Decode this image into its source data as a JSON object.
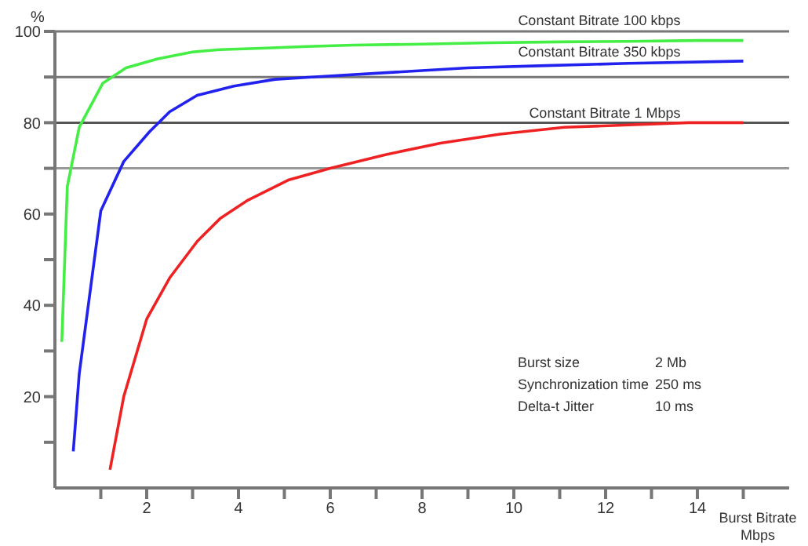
{
  "chart_data": {
    "type": "line",
    "xlabel": "Burst Bitrate Mbps",
    "ylabel": "%",
    "xlim": [
      0,
      16
    ],
    "xticks": [
      {
        "value": 1,
        "label": null
      },
      2,
      {
        "value": 3,
        "label": null
      },
      4,
      {
        "value": 5,
        "label": null
      },
      6,
      {
        "value": 7,
        "label": null
      },
      8,
      {
        "value": 9,
        "label": null
      },
      10,
      {
        "value": 11,
        "label": null
      },
      12,
      {
        "value": 13,
        "label": null
      },
      14,
      {
        "value": 15,
        "label": null
      }
    ],
    "ylim": [
      0,
      100
    ],
    "yticks": [
      {
        "value": 10,
        "label": null
      },
      20,
      {
        "value": 30,
        "label": null
      },
      40,
      {
        "value": 50,
        "label": null
      },
      60,
      {
        "value": 70,
        "label": null
      },
      80,
      {
        "value": 90,
        "label": null
      },
      100
    ],
    "grid": false,
    "legend": false,
    "marker": "none",
    "line_style": "solid",
    "ref_lines": [
      {
        "axis": "y",
        "value": 70,
        "color": "#999999"
      },
      {
        "axis": "y",
        "value": 80,
        "color": "#555555"
      },
      {
        "axis": "y",
        "value": 90,
        "color": "#777777"
      },
      {
        "axis": "y",
        "value": 100,
        "color": "#777777"
      }
    ],
    "series": [
      {
        "name": "Constant Bitrate 100 kbps",
        "color": "#44ee44",
        "x": [
          0.15,
          0.27,
          0.53,
          1.04,
          1.55,
          2.24,
          3.0,
          3.6,
          4.5,
          5.5,
          6.5,
          8,
          9.5,
          11,
          12.5,
          14,
          15
        ],
        "values": [
          32,
          66,
          79,
          88.6,
          92,
          94,
          95.5,
          96,
          96.3,
          96.7,
          97,
          97.2,
          97.5,
          97.7,
          97.8,
          98,
          98
        ]
      },
      {
        "name": "Constant Bitrate 350 kbps",
        "color": "#2222ee",
        "x": [
          0.4,
          0.53,
          1.0,
          1.5,
          2.06,
          2.5,
          3.1,
          3.9,
          4.8,
          5.6,
          7.3,
          9.0,
          10.7,
          12.5,
          15
        ],
        "values": [
          8,
          25,
          60.7,
          71.5,
          78,
          82.4,
          86,
          88,
          89.5,
          90,
          91,
          92,
          92.5,
          93,
          93.5
        ]
      },
      {
        "name": "Constant Bitrate 1 Mbps",
        "color": "#ee2222",
        "x": [
          1.2,
          1.5,
          2.0,
          2.5,
          3.1,
          3.6,
          4.2,
          5.1,
          6.0,
          7.2,
          8.4,
          9.7,
          11.1,
          12.5,
          13.8,
          15
        ],
        "values": [
          4,
          20,
          37,
          46,
          54,
          59,
          63,
          67.5,
          70,
          73,
          75.5,
          77.5,
          79,
          79.5,
          80,
          80
        ]
      }
    ],
    "annotations": [
      "Burst size",
      "2 Mb",
      "Synchronization time",
      "250 ms",
      "Delta-t Jitter",
      "10 ms"
    ]
  }
}
